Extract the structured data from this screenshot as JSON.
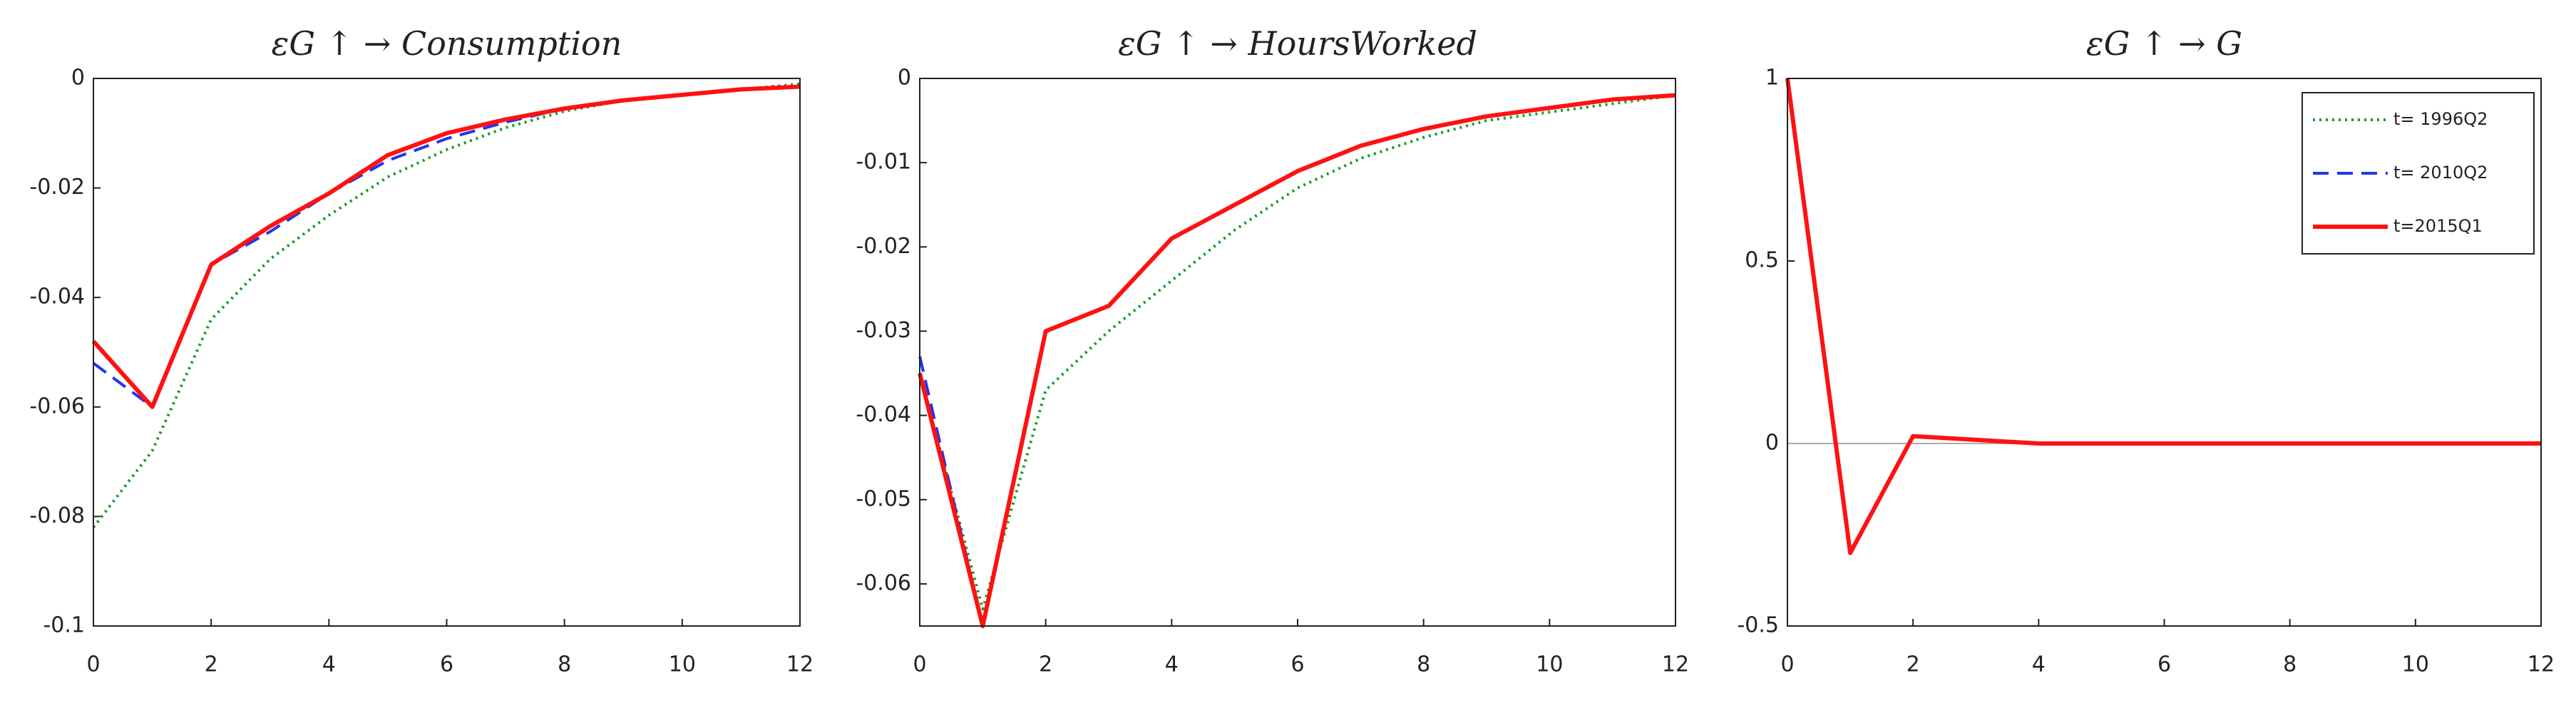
{
  "chart_data": [
    {
      "type": "line",
      "title": "εG ↑ → Consumption",
      "x": [
        0,
        1,
        2,
        3,
        4,
        5,
        6,
        7,
        8,
        9,
        10,
        11,
        12
      ],
      "xlim": [
        0,
        12
      ],
      "xticks": [
        0,
        2,
        4,
        6,
        8,
        10,
        12
      ],
      "ylim": [
        -0.1,
        0
      ],
      "yticks": [
        -0.1,
        -0.08,
        -0.06,
        -0.04,
        -0.02,
        0
      ],
      "series": [
        {
          "color": "#1a9a2a",
          "linestyle": "dotted",
          "values": [
            -0.082,
            -0.068,
            -0.044,
            -0.033,
            -0.025,
            -0.018,
            -0.013,
            -0.009,
            -0.006,
            -0.004,
            -0.003,
            -0.002,
            -0.001
          ]
        },
        {
          "color": "#2233ee",
          "linestyle": "dashed",
          "values": [
            -0.052,
            -0.06,
            -0.034,
            -0.028,
            -0.021,
            -0.015,
            -0.011,
            -0.008,
            -0.0055,
            -0.004,
            -0.003,
            -0.002,
            -0.0015
          ]
        },
        {
          "color": "#ff1111",
          "linestyle": "solid",
          "values": [
            -0.048,
            -0.06,
            -0.034,
            -0.027,
            -0.021,
            -0.014,
            -0.01,
            -0.0075,
            -0.0055,
            -0.004,
            -0.003,
            -0.002,
            -0.0015
          ]
        }
      ]
    },
    {
      "type": "line",
      "title": "εG ↑ → HoursWorked",
      "x": [
        0,
        1,
        2,
        3,
        4,
        5,
        6,
        7,
        8,
        9,
        10,
        11,
        12
      ],
      "xlim": [
        0,
        12
      ],
      "xticks": [
        0,
        2,
        4,
        6,
        8,
        10,
        12
      ],
      "ylim": [
        -0.065,
        0
      ],
      "yticks": [
        -0.06,
        -0.05,
        -0.04,
        -0.03,
        -0.02,
        -0.01,
        0
      ],
      "series": [
        {
          "color": "#1a9a2a",
          "linestyle": "dotted",
          "values": [
            -0.035,
            -0.063,
            -0.037,
            -0.03,
            -0.024,
            -0.018,
            -0.013,
            -0.0095,
            -0.007,
            -0.005,
            -0.004,
            -0.003,
            -0.002
          ]
        },
        {
          "color": "#2233ee",
          "linestyle": "dashed",
          "values": [
            -0.033,
            -0.065,
            -0.03,
            -0.027,
            -0.019,
            -0.015,
            -0.011,
            -0.008,
            -0.006,
            -0.0045,
            -0.0035,
            -0.0025,
            -0.002
          ]
        },
        {
          "color": "#ff1111",
          "linestyle": "solid",
          "values": [
            -0.035,
            -0.065,
            -0.03,
            -0.027,
            -0.019,
            -0.015,
            -0.011,
            -0.008,
            -0.006,
            -0.0045,
            -0.0035,
            -0.0025,
            -0.002
          ]
        }
      ]
    },
    {
      "type": "line",
      "title": "εG ↑ → G",
      "x": [
        0,
        1,
        2,
        3,
        4,
        5,
        6,
        7,
        8,
        9,
        10,
        11,
        12
      ],
      "xlim": [
        0,
        12
      ],
      "xticks": [
        0,
        2,
        4,
        6,
        8,
        10,
        12
      ],
      "ylim": [
        -0.5,
        1
      ],
      "yticks": [
        -0.5,
        0,
        0.5,
        1
      ],
      "zero_line": true,
      "legend": "upper right",
      "series": [
        {
          "name": "t= 1996Q2",
          "color": "#1a9a2a",
          "linestyle": "dotted",
          "values": [
            1,
            -0.3,
            0.02,
            0.01,
            0,
            0,
            0,
            0,
            0,
            0,
            0,
            0,
            0
          ]
        },
        {
          "name": "t= 2010Q2",
          "color": "#2233ee",
          "linestyle": "dashed",
          "values": [
            1,
            -0.3,
            0.02,
            0.01,
            0,
            0,
            0,
            0,
            0,
            0,
            0,
            0,
            0
          ]
        },
        {
          "name": "t=2015Q1",
          "color": "#ff1111",
          "linestyle": "solid",
          "values": [
            1,
            -0.3,
            0.02,
            0.01,
            0,
            0,
            0,
            0,
            0,
            0,
            0,
            0,
            0
          ]
        }
      ]
    }
  ]
}
